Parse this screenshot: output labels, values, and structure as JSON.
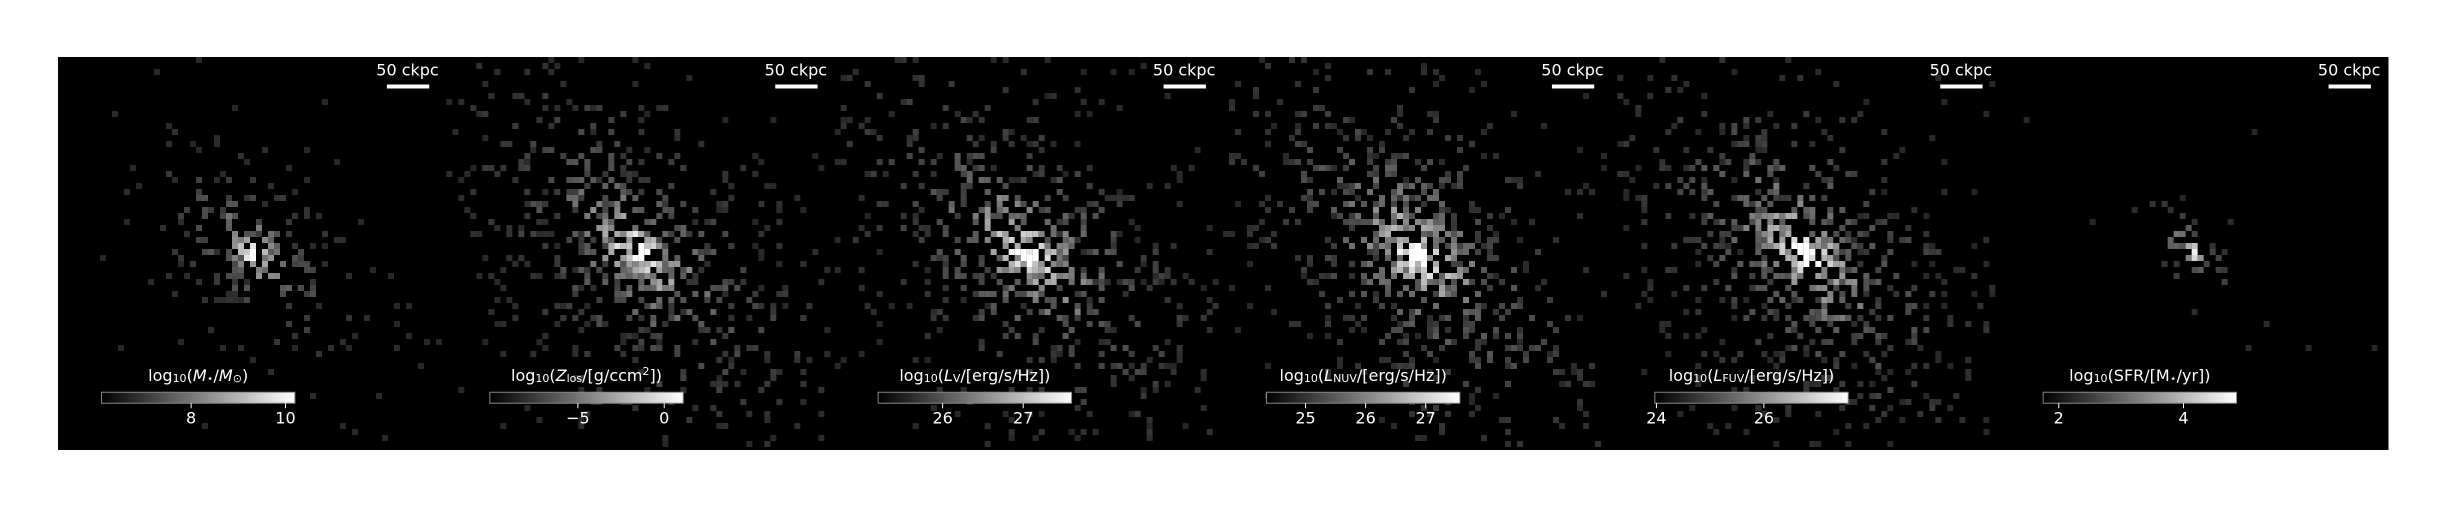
{
  "chart_data": [
    {
      "type": "image",
      "scalebar": "50 ckpc",
      "colorbar_label": [
        {
          "text": "log",
          "style": "normal"
        },
        {
          "text": "10",
          "style": "sub"
        },
        {
          "text": "(",
          "style": "normal"
        },
        {
          "text": "M",
          "style": "italic"
        },
        {
          "text": "⋆",
          "style": "sub"
        },
        {
          "text": "/",
          "style": "normal"
        },
        {
          "text": "M",
          "style": "italic"
        },
        {
          "text": "⊙",
          "style": "sub"
        },
        {
          "text": ")",
          "style": "normal"
        }
      ],
      "clim": [
        6.1,
        10.2
      ],
      "cticks": [
        8,
        10
      ]
    },
    {
      "type": "image",
      "scalebar": "50 ckpc",
      "colorbar_label": [
        {
          "text": "log",
          "style": "normal"
        },
        {
          "text": "10",
          "style": "sub"
        },
        {
          "text": "(",
          "style": "normal"
        },
        {
          "text": "Z",
          "style": "italic"
        },
        {
          "text": "los",
          "style": "sub"
        },
        {
          "text": "/[g/ccm",
          "style": "normal"
        },
        {
          "text": "2",
          "style": "sup"
        },
        {
          "text": "])",
          "style": "normal"
        }
      ],
      "clim": [
        -10.1,
        1.1
      ],
      "cticks": [
        {
          "value": -5,
          "label": "−5"
        },
        0
      ]
    },
    {
      "type": "image",
      "scalebar": "50 ckpc",
      "colorbar_label": [
        {
          "text": "log",
          "style": "normal"
        },
        {
          "text": "10",
          "style": "sub"
        },
        {
          "text": "(",
          "style": "normal"
        },
        {
          "text": "L",
          "style": "italic"
        },
        {
          "text": "V",
          "style": "sub"
        },
        {
          "text": "/[erg/s/Hz])",
          "style": "normal"
        }
      ],
      "clim": [
        25.2,
        27.6
      ],
      "cticks": [
        26,
        27
      ]
    },
    {
      "type": "image",
      "scalebar": "50 ckpc",
      "colorbar_label": [
        {
          "text": "log",
          "style": "normal"
        },
        {
          "text": "10",
          "style": "sub"
        },
        {
          "text": "(",
          "style": "normal"
        },
        {
          "text": "L",
          "style": "italic"
        },
        {
          "text": "NUV",
          "style": "sub"
        },
        {
          "text": "/[erg/s/Hz])",
          "style": "normal"
        }
      ],
      "clim": [
        24.35,
        27.57
      ],
      "cticks": [
        25,
        26,
        27
      ]
    },
    {
      "type": "image",
      "scalebar": "50 ckpc",
      "colorbar_label": [
        {
          "text": "log",
          "style": "normal"
        },
        {
          "text": "10",
          "style": "sub"
        },
        {
          "text": "(",
          "style": "normal"
        },
        {
          "text": "L",
          "style": "italic"
        },
        {
          "text": "FUV",
          "style": "sub"
        },
        {
          "text": "/[erg/s/Hz])",
          "style": "normal"
        }
      ],
      "clim": [
        23.97,
        27.57
      ],
      "cticks": [
        24,
        26
      ]
    },
    {
      "type": "image",
      "scalebar": "50 ckpc",
      "colorbar_label": [
        {
          "text": "log",
          "style": "normal"
        },
        {
          "text": "10",
          "style": "sub"
        },
        {
          "text": "(SFR/[M",
          "style": "normal"
        },
        {
          "text": "⋆",
          "style": "sub"
        },
        {
          "text": "/yr])",
          "style": "normal"
        }
      ],
      "clim": [
        1.75,
        4.85
      ],
      "cticks": [
        2,
        4
      ]
    }
  ]
}
